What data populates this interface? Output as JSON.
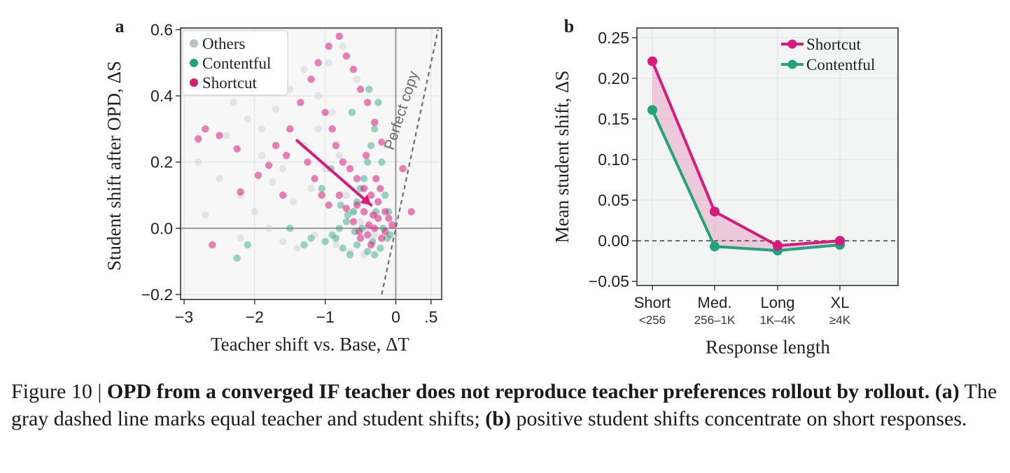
{
  "colors": {
    "others": "#b9c1c9",
    "contentful": "#22a37a",
    "shortcut": "#d81b7b",
    "axes_bg": "#f3f5f4",
    "grid": "#dde2e0",
    "perfect_copy": "#6b6b6b"
  },
  "chart_data": [
    {
      "panel": "a",
      "type": "scatter",
      "xlabel": "Teacher shift vs. Base, ΔT",
      "ylabel": "Student shift after OPD, ΔS",
      "xlim": [
        -3.05,
        0.65
      ],
      "ylim": [
        -0.215,
        0.605
      ],
      "xticks": [
        -3,
        -2,
        -1,
        0,
        0.5
      ],
      "xtick_labels": [
        "−3",
        "−2",
        "−1",
        "0",
        ".5"
      ],
      "yticks": [
        -0.2,
        0.0,
        0.2,
        0.4,
        0.6
      ],
      "ytick_labels": [
        "−0.2",
        "0.0",
        "0.2",
        "0.4",
        "0.6"
      ],
      "legend": {
        "location": "top-left",
        "entries": [
          "Others",
          "Contentful",
          "Shortcut"
        ]
      },
      "perfect_copy_label": "Perfect copy",
      "perfect_copy_line": {
        "x": [
          -0.2,
          0.6
        ],
        "y": [
          -0.2,
          0.6
        ]
      },
      "trend_arrow": {
        "from": [
          -1.4,
          0.265
        ],
        "to": [
          -0.35,
          0.07
        ]
      },
      "series": [
        {
          "name": "Others",
          "points": [
            [
              -2.6,
              0.45
            ],
            [
              -2.3,
              0.38
            ],
            [
              -2.1,
              0.33
            ],
            [
              -1.9,
              0.3
            ],
            [
              -1.7,
              0.36
            ],
            [
              -1.5,
              0.42
            ],
            [
              -1.3,
              0.48
            ],
            [
              -1.1,
              0.4
            ],
            [
              -0.9,
              0.35
            ],
            [
              -2.8,
              0.2
            ],
            [
              -2.5,
              0.15
            ],
            [
              -2.2,
              0.1
            ],
            [
              -2.0,
              0.05
            ],
            [
              -1.8,
              0.0
            ],
            [
              -1.6,
              -0.04
            ],
            [
              -1.4,
              -0.06
            ],
            [
              -1.2,
              0.12
            ],
            [
              -1.0,
              0.18
            ],
            [
              -0.8,
              0.22
            ],
            [
              -0.7,
              0.1
            ],
            [
              -0.6,
              0.05
            ],
            [
              -0.5,
              0.02
            ],
            [
              -0.4,
              0.0
            ],
            [
              -0.3,
              -0.02
            ],
            [
              -2.4,
              0.28
            ],
            [
              -1.9,
              0.22
            ],
            [
              -1.6,
              0.18
            ],
            [
              -1.3,
              0.25
            ],
            [
              -1.1,
              0.3
            ],
            [
              -0.95,
              0.5
            ],
            [
              -0.75,
              0.55
            ],
            [
              -0.55,
              0.45
            ],
            [
              -2.7,
              0.04
            ],
            [
              -2.2,
              -0.03
            ],
            [
              -1.75,
              0.14
            ],
            [
              -1.45,
              0.08
            ],
            [
              -1.15,
              -0.02
            ],
            [
              -0.85,
              -0.05
            ],
            [
              -0.65,
              -0.07
            ],
            [
              -0.45,
              -0.08
            ]
          ]
        },
        {
          "name": "Contentful",
          "points": [
            [
              -0.25,
              0.38
            ],
            [
              -0.3,
              0.3
            ],
            [
              -0.35,
              0.25
            ],
            [
              -0.4,
              0.2
            ],
            [
              -0.45,
              0.15
            ],
            [
              -0.5,
              0.12
            ],
            [
              -0.55,
              0.08
            ],
            [
              -0.6,
              0.05
            ],
            [
              -0.7,
              0.02
            ],
            [
              -0.8,
              0.0
            ],
            [
              -0.9,
              -0.02
            ],
            [
              -1.0,
              -0.04
            ],
            [
              -1.2,
              -0.03
            ],
            [
              -1.3,
              -0.05
            ],
            [
              -0.2,
              0.2
            ],
            [
              -0.15,
              0.1
            ],
            [
              -0.1,
              0.05
            ],
            [
              -0.12,
              -0.03
            ],
            [
              -0.22,
              -0.06
            ],
            [
              -0.3,
              -0.08
            ],
            [
              -0.4,
              -0.07
            ],
            [
              -0.55,
              -0.05
            ],
            [
              -0.65,
              -0.08
            ],
            [
              -0.75,
              -0.06
            ],
            [
              -0.85,
              -0.03
            ],
            [
              -1.5,
              0.0
            ],
            [
              -2.1,
              -0.05
            ],
            [
              -2.25,
              -0.09
            ],
            [
              -1.05,
              0.12
            ],
            [
              -0.92,
              0.18
            ],
            [
              -0.62,
              0.35
            ],
            [
              -0.38,
              0.42
            ],
            [
              -0.28,
              0.05
            ],
            [
              -0.18,
              0.0
            ],
            [
              -0.08,
              -0.02
            ],
            [
              -0.33,
              -0.04
            ],
            [
              -0.48,
              0.0
            ],
            [
              -0.58,
              -0.01
            ],
            [
              -0.68,
              0.04
            ],
            [
              -0.78,
              0.07
            ]
          ]
        },
        {
          "name": "Shortcut",
          "points": [
            [
              -2.8,
              0.27
            ],
            [
              -2.7,
              0.3
            ],
            [
              -2.5,
              0.28
            ],
            [
              -2.25,
              0.24
            ],
            [
              -2.2,
              0.11
            ],
            [
              -2.6,
              -0.05
            ],
            [
              -1.95,
              0.16
            ],
            [
              -1.7,
              0.25
            ],
            [
              -1.5,
              0.3
            ],
            [
              -1.35,
              0.38
            ],
            [
              -1.2,
              0.45
            ],
            [
              -1.1,
              0.5
            ],
            [
              -0.95,
              0.55
            ],
            [
              -0.8,
              0.58
            ],
            [
              -0.7,
              0.52
            ],
            [
              -0.6,
              0.48
            ],
            [
              -0.5,
              0.42
            ],
            [
              -0.4,
              0.38
            ],
            [
              -0.3,
              0.32
            ],
            [
              -0.2,
              0.26
            ],
            [
              -1.0,
              0.35
            ],
            [
              -0.9,
              0.3
            ],
            [
              -0.85,
              0.25
            ],
            [
              -0.75,
              0.2
            ],
            [
              -0.65,
              0.18
            ],
            [
              -0.55,
              0.15
            ],
            [
              -0.45,
              0.12
            ],
            [
              -0.35,
              0.1
            ],
            [
              -0.25,
              0.08
            ],
            [
              -0.15,
              0.05
            ],
            [
              -0.1,
              0.03
            ],
            [
              -0.05,
              0.01
            ],
            [
              -0.3,
              0.0
            ],
            [
              -0.4,
              -0.02
            ],
            [
              -0.5,
              -0.03
            ],
            [
              -0.6,
              0.02
            ],
            [
              -0.7,
              0.06
            ],
            [
              -0.8,
              0.1
            ],
            [
              -0.2,
              -0.03
            ],
            [
              -0.35,
              -0.05
            ],
            [
              -0.45,
              0.05
            ],
            [
              -0.55,
              0.07
            ],
            [
              -0.25,
              0.03
            ],
            [
              -0.15,
              -0.01
            ],
            [
              -1.25,
              0.2
            ],
            [
              -1.15,
              0.15
            ],
            [
              -1.05,
              0.1
            ],
            [
              -0.95,
              0.07
            ],
            [
              -1.6,
              0.1
            ],
            [
              -1.8,
              0.19
            ],
            [
              0.1,
              0.18
            ],
            [
              0.22,
              0.05
            ],
            [
              -2.05,
              0.42
            ],
            [
              -1.55,
              0.22
            ],
            [
              -0.42,
              0.22
            ],
            [
              -0.28,
              0.15
            ],
            [
              -0.32,
              0.04
            ],
            [
              -0.38,
              0.01
            ],
            [
              -0.22,
              0.12
            ],
            [
              -0.52,
              -0.01
            ]
          ]
        }
      ]
    },
    {
      "panel": "b",
      "type": "line",
      "categories": [
        "Short",
        "Med.",
        "Long",
        "XL"
      ],
      "category_sublabels": [
        "<256",
        "256–1K",
        "1K–4K",
        "≥4K"
      ],
      "xlabel": "Response length",
      "ylabel": "Mean student shift, ΔS",
      "ylim": [
        -0.055,
        0.262
      ],
      "yticks": [
        -0.05,
        0.0,
        0.05,
        0.1,
        0.15,
        0.2,
        0.25
      ],
      "ytick_labels": [
        "−0.05",
        "0.00",
        "0.05",
        "0.10",
        "0.15",
        "0.20",
        "0.25"
      ],
      "legend": {
        "location": "top-right",
        "entries": [
          "Shortcut",
          "Contentful"
        ]
      },
      "series": [
        {
          "name": "Shortcut",
          "values": [
            0.221,
            0.036,
            -0.006,
            0.0
          ]
        },
        {
          "name": "Contentful",
          "values": [
            0.161,
            -0.007,
            -0.012,
            -0.005
          ]
        }
      ]
    }
  ],
  "panel_labels": [
    "a",
    "b"
  ],
  "caption": {
    "number": "Figure 10 | ",
    "bold": "OPD from a converged IF teacher does not reproduce teacher preferences rollout by rollout.",
    "part_a_label": "(a)",
    "part_a_text": " The gray dashed line marks equal teacher and student shifts; ",
    "part_b_label": "(b)",
    "part_b_text": " positive student shifts concentrate on short responses."
  }
}
